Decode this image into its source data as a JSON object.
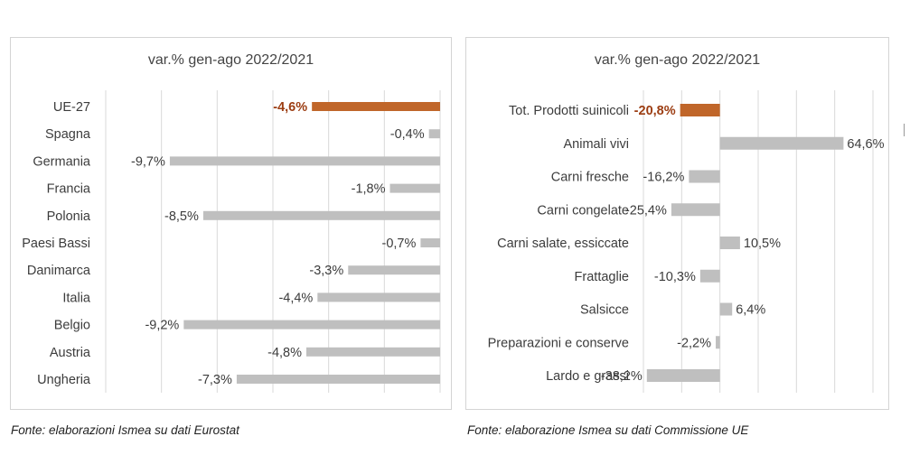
{
  "colors": {
    "bar": "#bfbfbf",
    "highlight": "#c0662a",
    "highlight_label": "#9c3d12",
    "grid": "#d9d9d9",
    "text": "#3c3c3c"
  },
  "chart_data": [
    {
      "type": "bar",
      "orientation": "horizontal",
      "title": "var.% gen-ago 2022/2021",
      "categories": [
        "UE-27",
        "Spagna",
        "Germania",
        "Francia",
        "Polonia",
        "Paesi Bassi",
        "Danimarca",
        "Italia",
        "Belgio",
        "Austria",
        "Ungheria"
      ],
      "values": [
        -4.6,
        -0.4,
        -9.7,
        -1.8,
        -8.5,
        -0.7,
        -3.3,
        -4.4,
        -9.2,
        -4.8,
        -7.3
      ],
      "labels": [
        "-4,6%",
        "-0,4%",
        "-9,7%",
        "-1,8%",
        "-8,5%",
        "-0,7%",
        "-3,3%",
        "-4,4%",
        "-9,2%",
        "-4,8%",
        "-7,3%"
      ],
      "highlight_index": 0,
      "xlim": [
        -12,
        0
      ],
      "grid_step": 2,
      "source": "Fonte: elaborazioni Ismea su dati Eurostat"
    },
    {
      "type": "bar",
      "orientation": "horizontal",
      "title": "var.% gen-ago 2022/2021",
      "categories": [
        "Tot. Prodotti suinicoli",
        "Animali vivi",
        "Carni fresche",
        "Carni congelate",
        "Carni salate, essiccate",
        "Frattaglie",
        "Salsicce",
        "Preparazioni e conserve",
        "Lardo e grassi"
      ],
      "values": [
        -20.8,
        64.6,
        -16.2,
        -25.4,
        10.5,
        -10.3,
        6.4,
        -2.2,
        -38.2
      ],
      "labels": [
        "-20,8%",
        "64,6%",
        "-16,2%",
        "-25,4%",
        "10,5%",
        "-10,3%",
        "6,4%",
        "-2,2%",
        "-38,2%"
      ],
      "highlight_index": 0,
      "xlim": [
        -40,
        80
      ],
      "grid_step": 20,
      "source": "Fonte: elaborazione Ismea su dati Commissione UE"
    }
  ]
}
